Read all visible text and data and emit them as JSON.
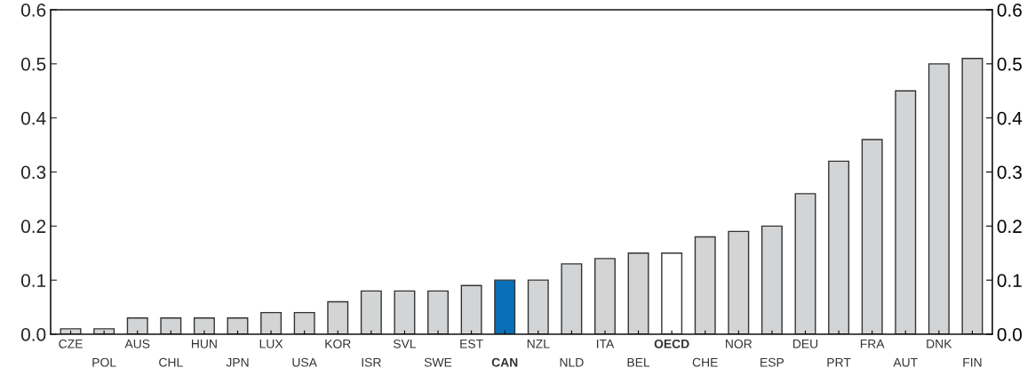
{
  "chart_data": {
    "type": "bar",
    "categories": [
      "CZE",
      "POL",
      "AUS",
      "CHL",
      "HUN",
      "JPN",
      "LUX",
      "USA",
      "KOR",
      "ISR",
      "SVL",
      "SWE",
      "EST",
      "CAN",
      "NZL",
      "NLD",
      "ITA",
      "BEL",
      "OECD",
      "CHE",
      "NOR",
      "ESP",
      "DEU",
      "PRT",
      "FRA",
      "AUT",
      "DNK",
      "FIN"
    ],
    "values": [
      0.01,
      0.01,
      0.03,
      0.03,
      0.03,
      0.03,
      0.04,
      0.04,
      0.06,
      0.08,
      0.08,
      0.08,
      0.09,
      0.1,
      0.1,
      0.13,
      0.14,
      0.15,
      0.15,
      0.18,
      0.19,
      0.2,
      0.26,
      0.32,
      0.36,
      0.45,
      0.5,
      0.51
    ],
    "colors": [
      "#d3d4d6",
      "#d3d4d6",
      "#d3d4d6",
      "#d3d4d6",
      "#d3d4d6",
      "#d3d4d6",
      "#d3d4d6",
      "#d3d4d6",
      "#d3d4d6",
      "#d3d4d6",
      "#d3d4d6",
      "#d3d4d6",
      "#d3d4d6",
      "#0a6fb7",
      "#d3d4d6",
      "#d3d4d6",
      "#d3d4d6",
      "#d3d4d6",
      "#ffffff",
      "#d3d4d6",
      "#d3d4d6",
      "#d3d4d6",
      "#d3d4d6",
      "#d3d4d6",
      "#d3d4d6",
      "#d3d4d6",
      "#d3d4d6",
      "#d3d4d6"
    ],
    "ylim": [
      0,
      0.6
    ],
    "yticks": [
      {
        "value": 0,
        "label": "0.0"
      },
      {
        "value": 0.1,
        "label": "0.1"
      },
      {
        "value": 0.2,
        "label": "0.2"
      },
      {
        "value": 0.3,
        "label": "0.3"
      },
      {
        "value": 0.4,
        "label": "0.4"
      },
      {
        "value": 0.5,
        "label": "0.5"
      },
      {
        "value": 0.6,
        "label": "0.6"
      }
    ],
    "y2lim": [
      0,
      0.6
    ],
    "y2ticks": [
      {
        "value": 0,
        "label": "0.0"
      },
      {
        "value": 0.1,
        "label": "0.1"
      },
      {
        "value": 0.2,
        "label": "0.2"
      },
      {
        "value": 0.3,
        "label": "0.3"
      },
      {
        "value": 0.4,
        "label": "0.4"
      },
      {
        "value": 0.5,
        "label": "0.5"
      },
      {
        "value": 0.6,
        "label": "0.6"
      }
    ],
    "grid": false
  }
}
